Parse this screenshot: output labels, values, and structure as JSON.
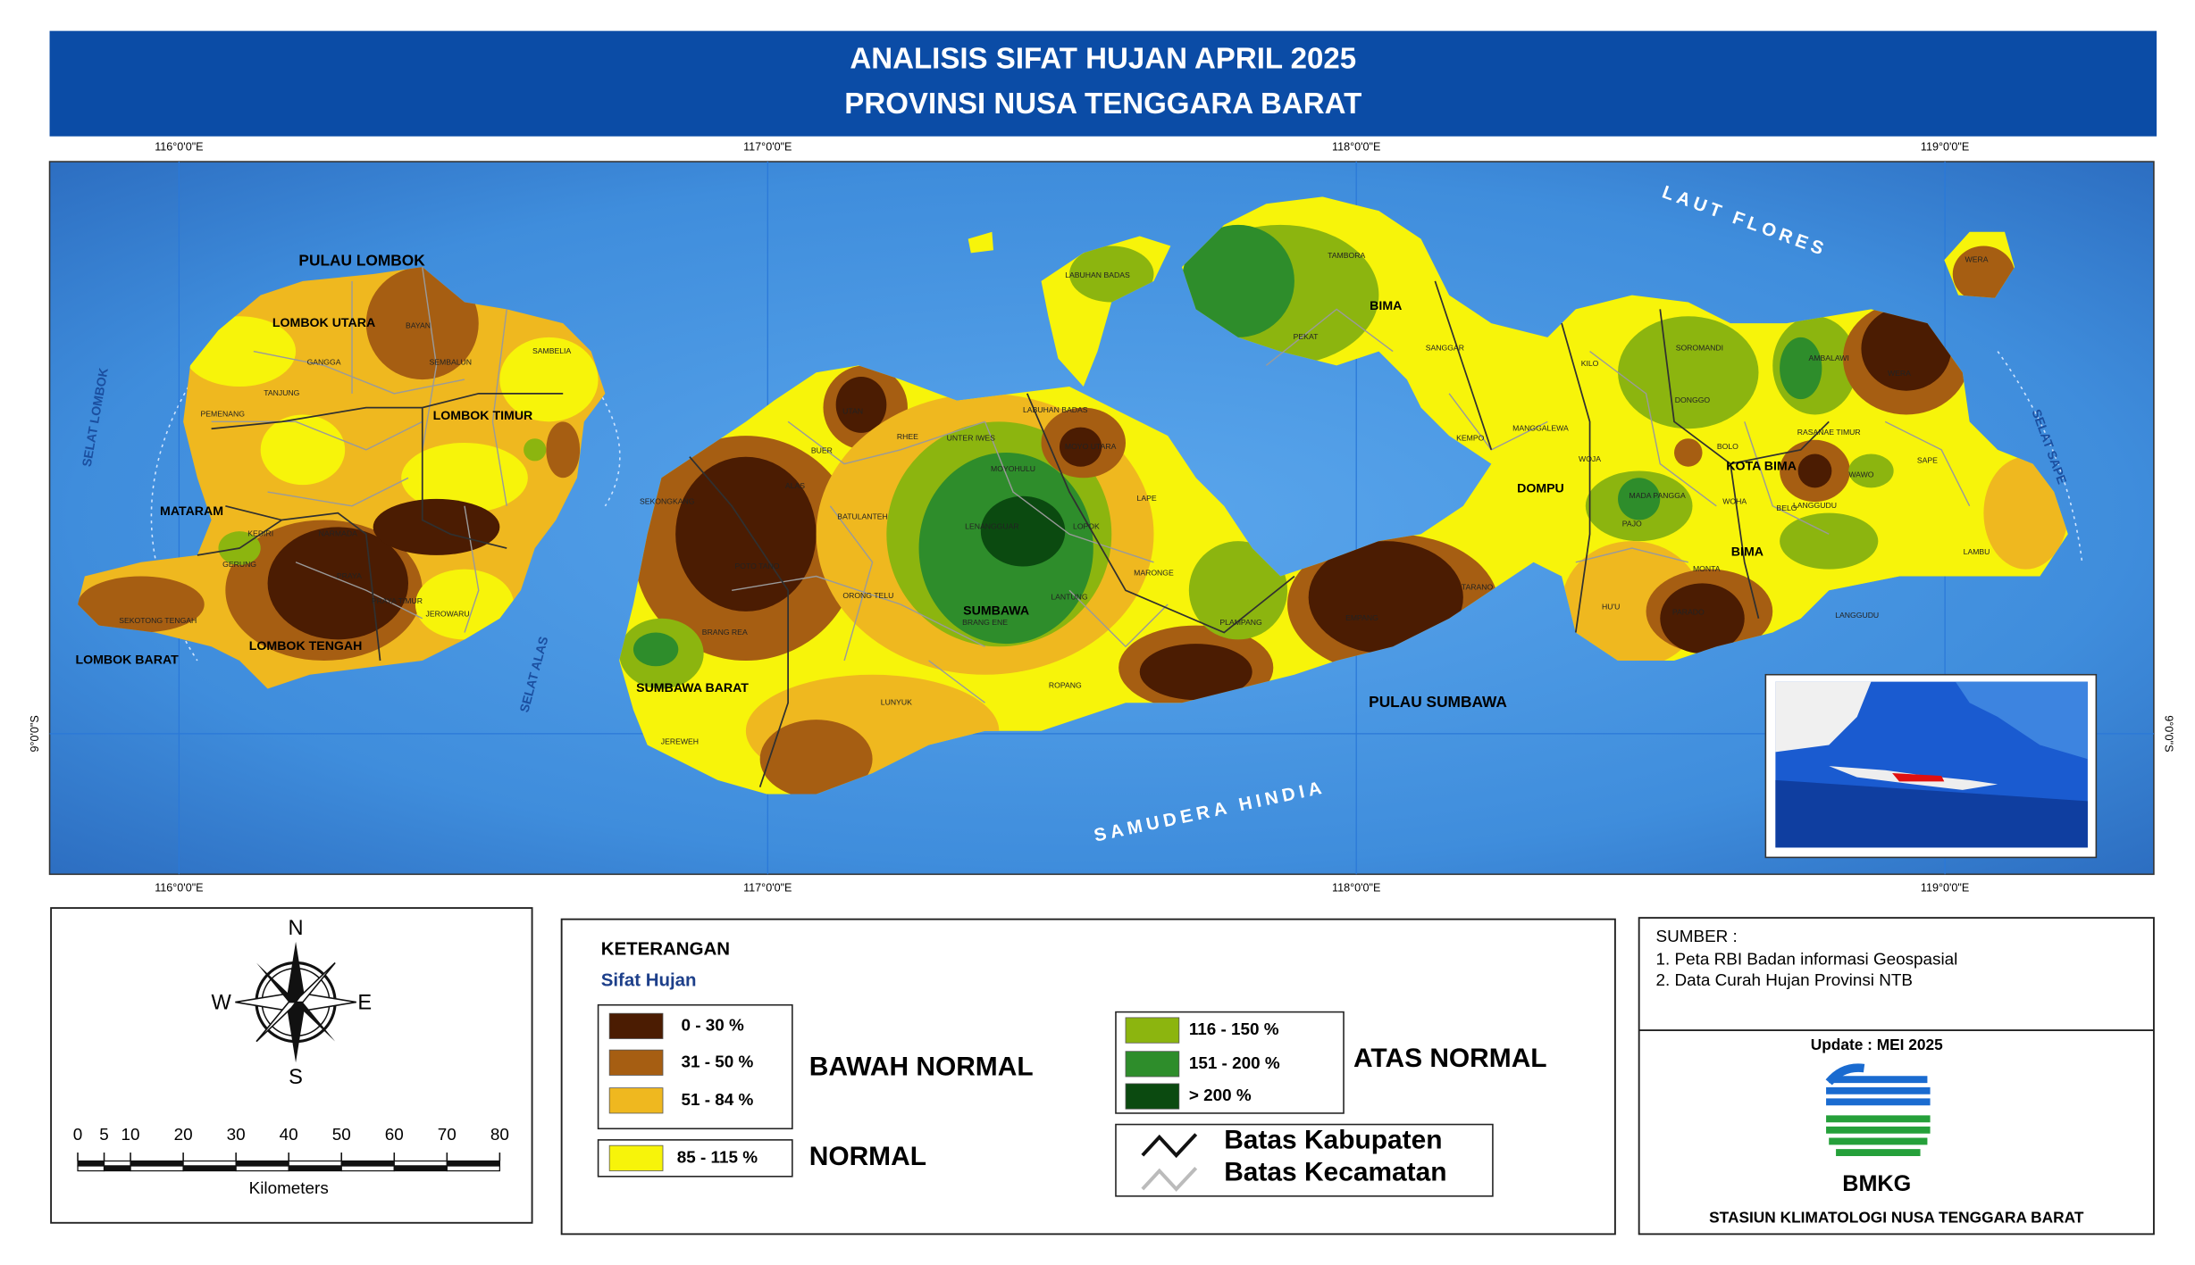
{
  "header": {
    "title_line1": "ANALISIS SIFAT HUJAN APRIL 2025",
    "title_line2": "PROVINSI NUSA TENGGARA BARAT"
  },
  "graticule": {
    "lon": [
      {
        "value": 116,
        "label": "116°0'0\"E"
      },
      {
        "value": 117,
        "label": "117°0'0\"E"
      },
      {
        "value": 118,
        "label": "118°0'0\"E"
      },
      {
        "value": 119,
        "label": "119°0'0\"E"
      }
    ],
    "lat": [
      {
        "value": -9,
        "label": "9°0'0\"S"
      }
    ]
  },
  "map_labels": [
    "PULAU LOMBOK",
    "LOMBOK UTARA",
    "LOMBOK TIMUR",
    "MATARAM",
    "LOMBOK TENGAH",
    "LOMBOK BARAT",
    "SUMBAWA BARAT",
    "SUMBAWA",
    "BIMA",
    "DOMPU",
    "KOTA BIMA",
    "BIMA",
    "PULAU SUMBAWA",
    "LAUT FLORES",
    "SAMUDERA HINDIA",
    "SELAT LOMBOK",
    "SELAT ALAS",
    "SELAT SAPE",
    "SEMBALUN",
    "BAYAN",
    "TANJUNG",
    "GANGGA",
    "SAMBELIA",
    "PEMENANG",
    "NARMADA",
    "GERUNG",
    "KEDIRI",
    "PRAYA",
    "JEROWARU",
    "SEKOTONG TENGAH",
    "PRAYA TIMUR",
    "TAMBORA",
    "PEKAT",
    "SANGGAR",
    "KEMPO",
    "MANGGALEWA",
    "KILO",
    "WOJA",
    "HU'U",
    "PAJO",
    "MONTA",
    "PARADO",
    "LANGGUDU",
    "LANGGUDU",
    "WERA",
    "WERA",
    "SAPE",
    "LAMBU",
    "WAWO",
    "DONGGO",
    "SOROMANDI",
    "BOLO",
    "WOHA",
    "BELO",
    "AMBALAWI",
    "MADA PANGGA",
    "RASANAE TIMUR",
    "TARANO",
    "EMPANG",
    "PLAMPANG",
    "LAPE",
    "LOPOK",
    "MARONGE",
    "LANTUNG",
    "ROPANG",
    "LUNYUK",
    "ORONG TELU",
    "BATULANTEH",
    "ALAS",
    "BUER",
    "RHEE",
    "UTAN",
    "MOYO UTARA",
    "LABUHAN BADAS",
    "LABUHAN BADAS",
    "UNTER IWES",
    "MOYOHULU",
    "LENANGGUAR",
    "BRANG ENE",
    "BRANG REA",
    "POTO TANO",
    "SEKONGKANG",
    "JEREWEH"
  ],
  "compass": {
    "n": "N",
    "s": "S",
    "e": "E",
    "w": "W"
  },
  "scale_bar": {
    "ticks": [
      0,
      5,
      10,
      20,
      30,
      40,
      50,
      60,
      70,
      80
    ],
    "unit": "Kilometers"
  },
  "legend": {
    "title": "KETERANGAN",
    "subtitle": "Sifat Hujan",
    "items": [
      {
        "label": "0 - 30 %",
        "color": "#4b1c02"
      },
      {
        "label": "31 - 50 %",
        "color": "#a65e12"
      },
      {
        "label": "51 - 84 %",
        "color": "#efb81f"
      },
      {
        "label": "85 - 115 %",
        "color": "#f7f40a"
      },
      {
        "label": "116 - 150 %",
        "color": "#8cb50f"
      },
      {
        "label": "151 - 200 %",
        "color": "#2e8d2b"
      },
      {
        "label": "> 200 %",
        "color": "#0b4a10"
      }
    ],
    "groups": {
      "below": "BAWAH NORMAL",
      "normal": "NORMAL",
      "above": "ATAS NORMAL"
    },
    "lines": {
      "kabupaten": "Batas Kabupaten",
      "kecamatan": "Batas Kecamatan"
    }
  },
  "source": {
    "title": "SUMBER :",
    "items": [
      "1. Peta RBI Badan informasi Geospasial",
      "2. Data Curah Hujan Provinsi NTB"
    ],
    "update": "Update : MEI 2025",
    "logo_text": "BMKG",
    "station": "STASIUN KLIMATOLOGI NUSA TENGGARA BARAT"
  }
}
